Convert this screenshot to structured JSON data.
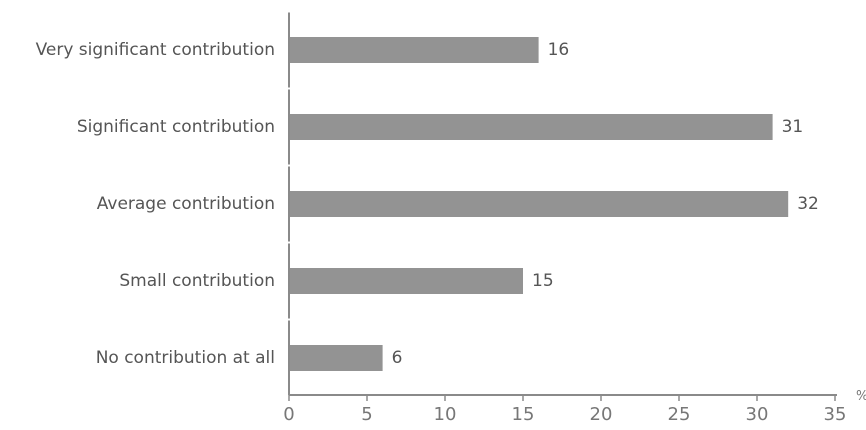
{
  "chart_data": {
    "type": "bar",
    "orientation": "horizontal",
    "categories": [
      "Very significant contribution",
      "Significant contribution",
      "Average contribution",
      "Small contribution",
      "No contribution at all"
    ],
    "values": [
      16,
      31,
      32,
      15,
      6
    ],
    "xlim": [
      0,
      35
    ],
    "xticks": [
      "0",
      "5",
      "10",
      "15",
      "20",
      "25",
      "30",
      "35"
    ],
    "unit": "%",
    "grid": false,
    "legend": "none",
    "colors": {
      "bar": "#939393",
      "axis": "#8a8a8a"
    }
  }
}
